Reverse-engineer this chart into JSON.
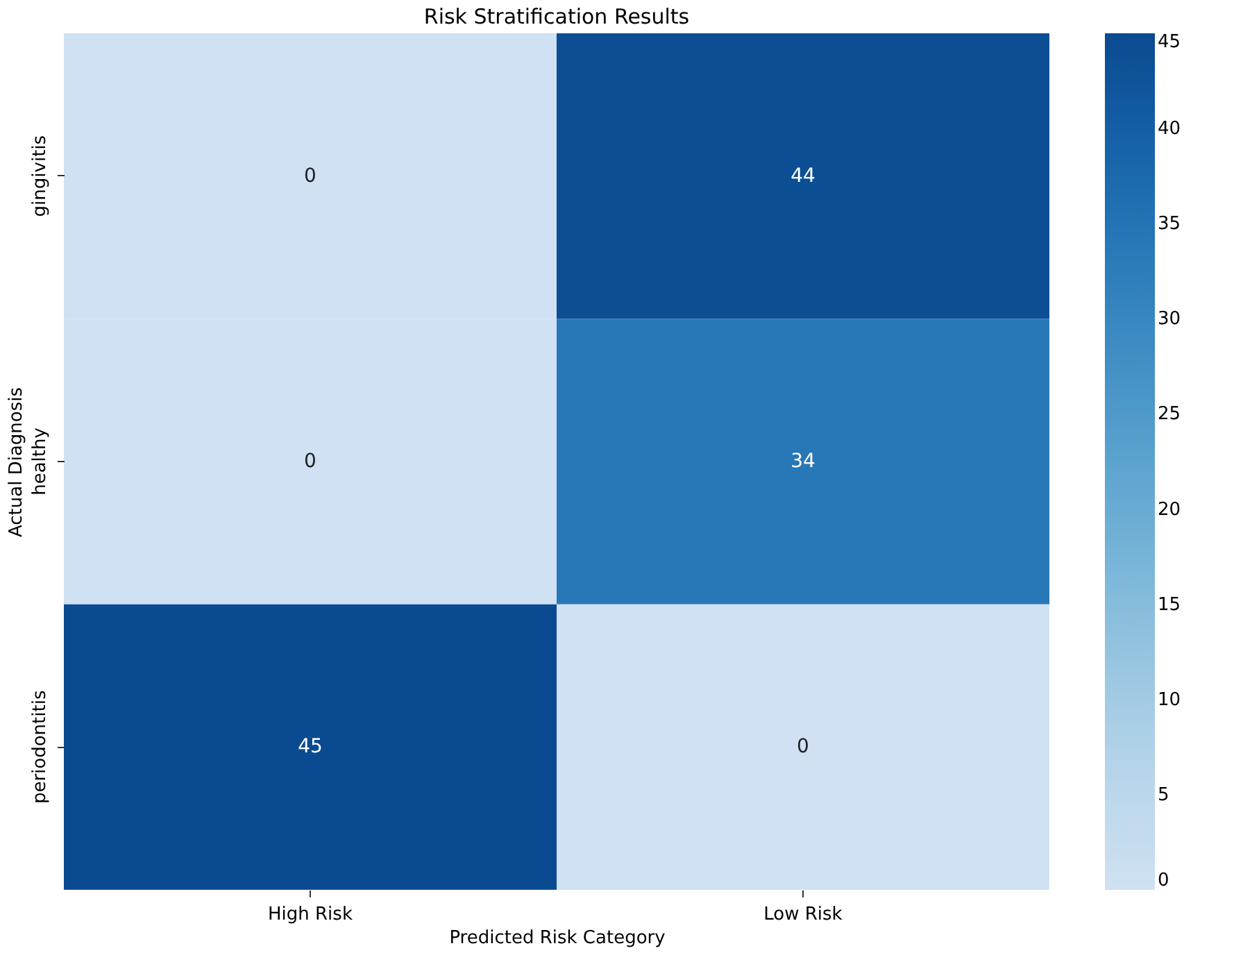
{
  "chart_data": {
    "type": "heatmap",
    "title": "Risk Stratification Results",
    "xlabel": "Predicted Risk Category",
    "ylabel": "Actual Diagnosis",
    "categories": [
      "High Risk",
      "Low Risk"
    ],
    "y_categories": [
      "gingivitis",
      "healthy",
      "periodontitis"
    ],
    "cells": [
      [
        0,
        44
      ],
      [
        0,
        34
      ],
      [
        45,
        0
      ]
    ],
    "clim": [
      0,
      45
    ],
    "cticks": [
      0,
      5,
      10,
      15,
      20,
      25,
      30,
      35,
      40,
      45
    ],
    "data_labels": true
  }
}
